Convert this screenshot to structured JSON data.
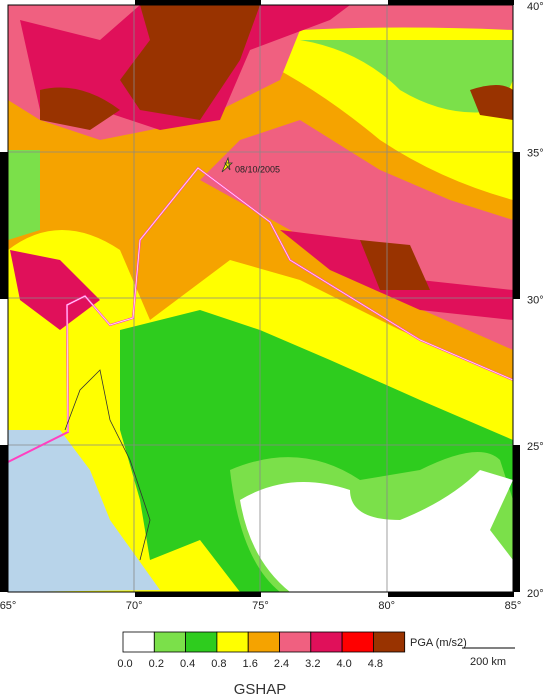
{
  "map": {
    "lon_labels": [
      "65°",
      "70°",
      "75°",
      "80°",
      "85°"
    ],
    "lat_labels": [
      "40°",
      "35°",
      "30°",
      "25°",
      "20°"
    ],
    "epicenter_label": "08/10/2005",
    "legend": {
      "colors": [
        "#ffffff",
        "#7be04a",
        "#2ecc1e",
        "#ffff00",
        "#f5a300",
        "#f06080",
        "#e0105a",
        "#ff0000",
        "#993300"
      ],
      "labels": [
        "0.0",
        "0.2",
        "0.4",
        "0.8",
        "1.6",
        "2.4",
        "3.2",
        "4.0",
        "4.8"
      ],
      "title": "PGA (m/s2)"
    },
    "scale_label": "200 km",
    "source": "GSHAP"
  }
}
